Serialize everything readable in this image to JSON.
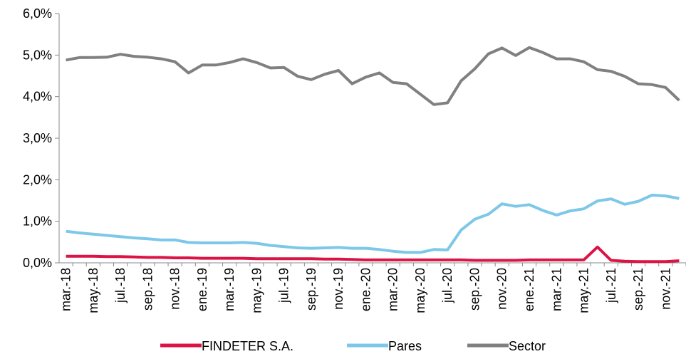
{
  "chart_data": {
    "type": "line",
    "categories": [
      "mar.-18",
      null,
      "may.-18",
      null,
      "jul.-18",
      null,
      "sep.-18",
      null,
      "nov.-18",
      null,
      "ene.-19",
      null,
      "mar.-19",
      null,
      "may.-19",
      null,
      "jul.-19",
      null,
      "sep.-19",
      null,
      "nov.-19",
      null,
      "ene.-20",
      null,
      "mar.-20",
      null,
      "may.-20",
      null,
      "jul.-20",
      null,
      "sep.-20",
      null,
      "nov.-20",
      null,
      "ene.-21",
      null,
      "mar.-21",
      null,
      "may.-21",
      null,
      "jul.-21",
      null,
      "sep.-21",
      null,
      "nov.-21",
      null
    ],
    "series": [
      {
        "name": "FINDETER S.A.",
        "color": "#dc1446",
        "values": [
          0.16,
          0.16,
          0.16,
          0.15,
          0.15,
          0.14,
          0.13,
          0.13,
          0.12,
          0.12,
          0.11,
          0.11,
          0.11,
          0.11,
          0.1,
          0.1,
          0.1,
          0.1,
          0.1,
          0.09,
          0.09,
          0.08,
          0.07,
          0.07,
          0.07,
          0.07,
          0.07,
          0.07,
          0.07,
          0.07,
          0.06,
          0.06,
          0.06,
          0.06,
          0.07,
          0.07,
          0.07,
          0.07,
          0.07,
          0.38,
          0.06,
          0.04,
          0.03,
          0.03,
          0.03,
          0.05
        ]
      },
      {
        "name": "Pares",
        "color": "#7dc8e8",
        "values": [
          0.76,
          0.72,
          0.69,
          0.66,
          0.63,
          0.6,
          0.58,
          0.55,
          0.55,
          0.49,
          0.48,
          0.48,
          0.48,
          0.49,
          0.47,
          0.42,
          0.39,
          0.36,
          0.35,
          0.36,
          0.37,
          0.35,
          0.35,
          0.32,
          0.28,
          0.25,
          0.25,
          0.32,
          0.31,
          0.79,
          1.05,
          1.17,
          1.42,
          1.36,
          1.4,
          1.26,
          1.15,
          1.25,
          1.3,
          1.49,
          1.54,
          1.41,
          1.48,
          1.63,
          1.61,
          1.55
        ]
      },
      {
        "name": "Sector",
        "color": "#808080",
        "values": [
          4.88,
          4.94,
          4.94,
          4.95,
          5.02,
          4.97,
          4.95,
          4.91,
          4.84,
          4.57,
          4.76,
          4.76,
          4.82,
          4.91,
          4.82,
          4.69,
          4.7,
          4.49,
          4.41,
          4.54,
          4.63,
          4.31,
          4.47,
          4.57,
          4.34,
          4.31,
          4.06,
          3.81,
          3.85,
          4.38,
          4.67,
          5.03,
          5.17,
          4.99,
          5.18,
          5.06,
          4.91,
          4.91,
          4.84,
          4.65,
          4.61,
          4.49,
          4.31,
          4.29,
          4.22,
          3.91
        ]
      }
    ],
    "ylim": [
      0,
      6
    ],
    "yticks": [
      {
        "value": 0,
        "label": "0,0%"
      },
      {
        "value": 1,
        "label": "1,0%"
      },
      {
        "value": 2,
        "label": "2,0%"
      },
      {
        "value": 3,
        "label": "3,0%"
      },
      {
        "value": 4,
        "label": "4,0%"
      },
      {
        "value": 5,
        "label": "5,0%"
      },
      {
        "value": 6,
        "label": "6,0%"
      }
    ],
    "grid": false,
    "legend": "bottom"
  }
}
